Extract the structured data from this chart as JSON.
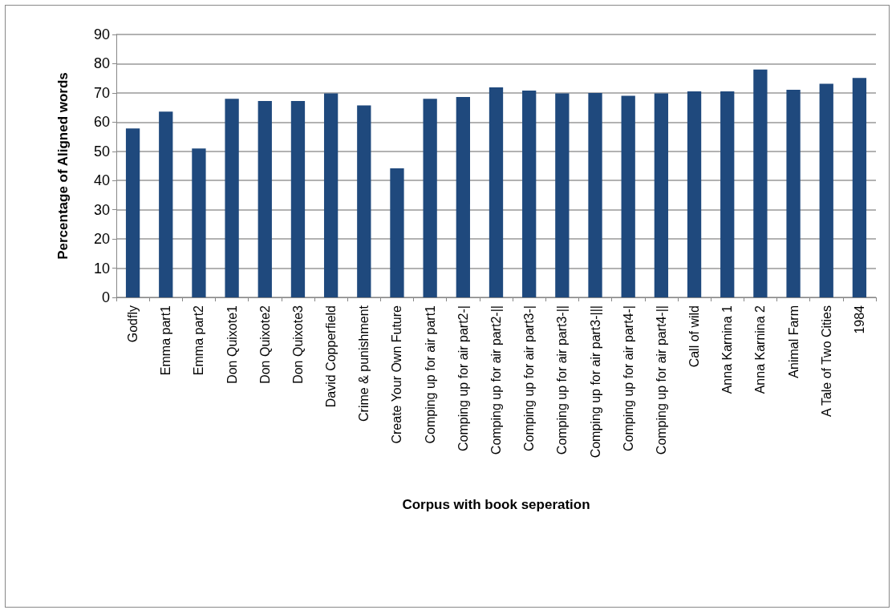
{
  "chart_data": {
    "type": "bar",
    "xlabel": "Corpus with book seperation",
    "ylabel": "Percentage of Aligned words",
    "categories": [
      "Godfly",
      "Emma part1",
      "Emma part2",
      "Don Quixote1",
      "Don Quixote2",
      "Don Quixote3",
      "David Copperfield",
      "Crime & punishment",
      "Create Your Own Future",
      "Comping up for air part1",
      "Comping up for air part2-|",
      "Comping up for air part2-||",
      "Comping up for air part3-|",
      "Comping up for air part3-||",
      "Comping up for air part3-|||",
      "Comping up for air part4-|",
      "Comping up for air part4-||",
      "Call of wild",
      "Anna Karnina 1",
      "Anna Karnina 2",
      "Animal Farm",
      "A Tale of Two Cities",
      "1984"
    ],
    "values": [
      57.8,
      63.6,
      51.0,
      68.0,
      67.2,
      67.2,
      69.8,
      65.7,
      44.2,
      68.0,
      68.6,
      71.9,
      70.8,
      69.8,
      70.0,
      69.0,
      69.8,
      70.5,
      70.5,
      78.0,
      71.1,
      73.1,
      75.1
    ],
    "color": "#1f497d",
    "ylim": [
      0,
      90
    ],
    "yticks": [
      0,
      10,
      20,
      30,
      40,
      50,
      60,
      70,
      80,
      90
    ],
    "grid": "y"
  }
}
